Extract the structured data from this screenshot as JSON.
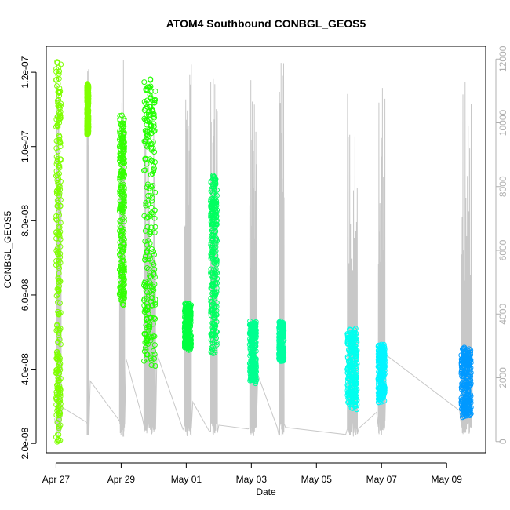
{
  "chart_data": {
    "type": "scatter",
    "title": "ATOM4 Southbound CONBGL_GEOS5",
    "xlabel": "Date",
    "ylabel": "CONBGL_GEOS5",
    "x_ticks": [
      "Apr 27",
      "Apr 29",
      "May 01",
      "May 03",
      "May 05",
      "May 07",
      "May 09"
    ],
    "x_tick_days": [
      0,
      2,
      4,
      6,
      8,
      10,
      12
    ],
    "xlim_days": [
      -0.3,
      13.2
    ],
    "y_ticks": [
      "2.0e-08",
      "4.0e-08",
      "6.0e-08",
      "8.0e-08",
      "1.0e-07",
      "1.2e-07"
    ],
    "y_tick_values": [
      2e-08,
      4e-08,
      6e-08,
      8e-08,
      1e-07,
      1.2e-07
    ],
    "ylim": [
      1.75e-08,
      1.27e-07
    ],
    "y2_ticks": [
      "0",
      "2000",
      "4000",
      "6000",
      "8000",
      "10000",
      "12000"
    ],
    "y2_tick_values": [
      0,
      2000,
      4000,
      6000,
      8000,
      10000,
      12000
    ],
    "y2lim": [
      -350,
      12400
    ],
    "point_series": [
      {
        "day_start": 0.0,
        "day_end": 0.15,
        "y_min": 1.9e-08,
        "y_max": 1.24e-07,
        "color": "#7FFF00"
      },
      {
        "day_start": 0.95,
        "day_end": 1.0,
        "y_min": 1.03e-07,
        "y_max": 1.17e-07,
        "color": "#7FFF00"
      },
      {
        "day_start": 1.95,
        "day_end": 2.1,
        "y_min": 5.7e-08,
        "y_max": 1.09e-07,
        "color": "#33FF00"
      },
      {
        "day_start": 2.7,
        "day_end": 3.05,
        "y_min": 4e-08,
        "y_max": 1.19e-07,
        "color": "#22FF00"
      },
      {
        "day_start": 3.95,
        "day_end": 4.15,
        "y_min": 4.5e-08,
        "y_max": 5.8e-08,
        "color": "#00FF40"
      },
      {
        "day_start": 4.75,
        "day_end": 4.95,
        "y_min": 4.4e-08,
        "y_max": 9.3e-08,
        "color": "#00FF60"
      },
      {
        "day_start": 5.95,
        "day_end": 6.15,
        "y_min": 3.6e-08,
        "y_max": 5.3e-08,
        "color": "#00FF90"
      },
      {
        "day_start": 6.85,
        "day_end": 7.0,
        "y_min": 4.2e-08,
        "y_max": 5.3e-08,
        "color": "#00FFA0"
      },
      {
        "day_start": 8.95,
        "day_end": 9.25,
        "y_min": 2.9e-08,
        "y_max": 5.1e-08,
        "color": "#00FFEE"
      },
      {
        "day_start": 9.9,
        "day_end": 10.1,
        "y_min": 3.1e-08,
        "y_max": 4.7e-08,
        "color": "#00F5FF"
      },
      {
        "day_start": 12.45,
        "day_end": 12.75,
        "y_min": 2.7e-08,
        "y_max": 4.6e-08,
        "color": "#0099FF"
      }
    ],
    "altitude_color": "#c8c8c8"
  }
}
